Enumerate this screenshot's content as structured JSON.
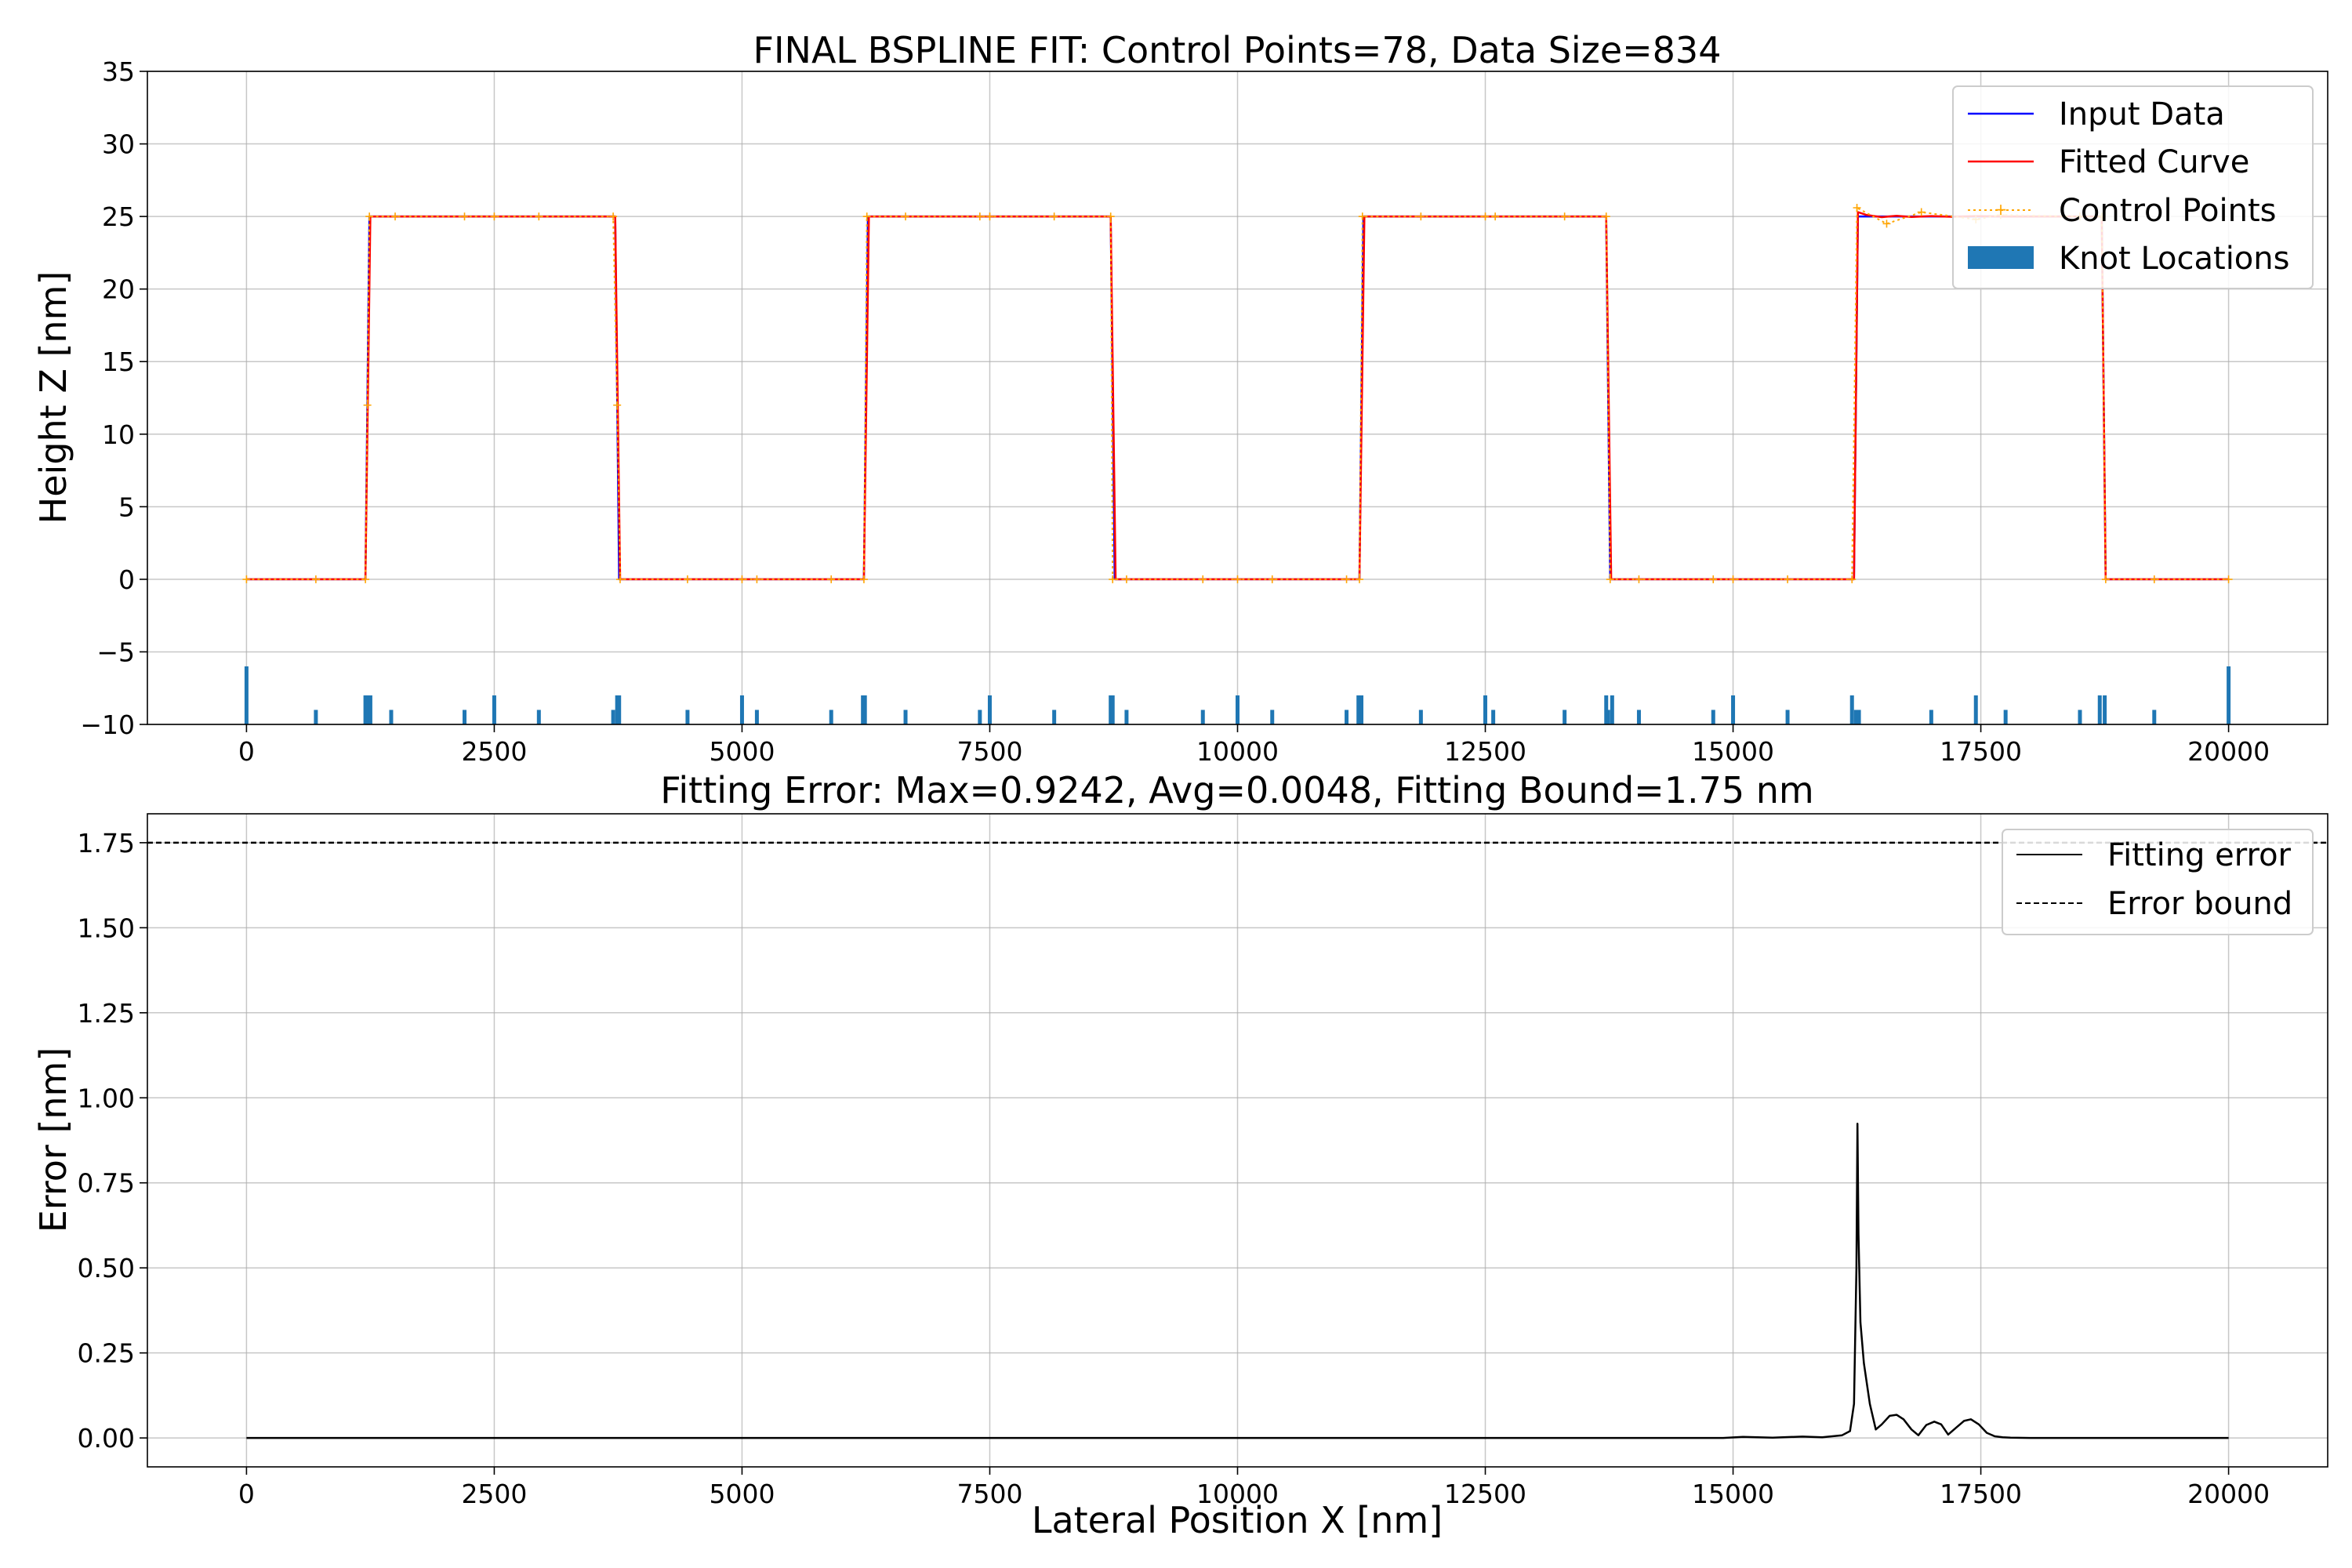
{
  "chart_data": [
    {
      "type": "line",
      "title": "FINAL BSPLINE FIT: Control Points=78, Data Size=834",
      "xlabel": "",
      "ylabel": "Height Z [nm]",
      "xlim": [
        -1000,
        21000
      ],
      "ylim": [
        -10,
        35
      ],
      "xticks": [
        0,
        2500,
        5000,
        7500,
        10000,
        12500,
        15000,
        17500,
        20000
      ],
      "yticks": [
        -10,
        -5,
        0,
        5,
        10,
        15,
        20,
        25,
        30,
        35
      ],
      "ytick_labels": [
        "−10",
        "−5",
        "0",
        "5",
        "10",
        "15",
        "20",
        "25",
        "30",
        "35"
      ],
      "grid": true,
      "legend_position": "upper right",
      "series": [
        {
          "name": "Input Data",
          "color": "#0000ff",
          "style": "solid",
          "x": [
            0,
            1200,
            1240,
            3720,
            3760,
            6230,
            6270,
            8720,
            8760,
            11230,
            11270,
            13720,
            13760,
            16220,
            16260,
            18720,
            18760,
            20000
          ],
          "y": [
            0,
            0,
            25,
            25,
            0,
            0,
            25,
            25,
            0,
            0,
            25,
            25,
            0,
            0,
            25,
            25,
            0,
            0
          ]
        },
        {
          "name": "Fitted Curve",
          "color": "#ff0000",
          "style": "solid",
          "x": [
            0,
            1200,
            1250,
            3720,
            3770,
            6230,
            6280,
            8720,
            8770,
            11230,
            11280,
            13720,
            13770,
            16220,
            16260,
            16350,
            16500,
            16650,
            16800,
            17000,
            17200,
            17450,
            17700,
            18720,
            18760,
            20000
          ],
          "y": [
            0,
            0,
            25,
            25,
            0,
            0,
            25,
            25,
            0,
            0,
            25,
            25,
            0,
            0,
            25.3,
            25.1,
            24.95,
            25.05,
            24.97,
            25.03,
            24.98,
            25.03,
            25.0,
            25,
            0,
            0
          ]
        },
        {
          "name": "Control Points",
          "color": "#ffa500",
          "style": "dotted",
          "marker": "+",
          "x": [
            0,
            700,
            1200,
            1220,
            1240,
            1500,
            2200,
            2500,
            2950,
            3700,
            3740,
            3770,
            4450,
            5000,
            5150,
            5900,
            6230,
            6260,
            6650,
            7400,
            7500,
            8150,
            8720,
            8740,
            8880,
            9650,
            10000,
            10350,
            11100,
            11230,
            11260,
            11850,
            12500,
            12600,
            13300,
            13720,
            13760,
            14050,
            14800,
            15000,
            15550,
            16200,
            16250,
            16550,
            16900,
            17450,
            17700,
            18500,
            18720,
            18760,
            19250,
            20000
          ],
          "y": [
            0,
            0,
            0,
            12,
            25,
            25,
            25,
            25,
            25,
            25,
            12,
            0,
            0,
            0,
            0,
            0,
            0,
            25,
            25,
            25,
            25,
            25,
            25,
            0,
            0,
            0,
            0,
            0,
            0,
            0,
            25,
            25,
            25,
            25,
            25,
            25,
            0,
            0,
            0,
            0,
            0,
            0,
            25.6,
            24.5,
            25.3,
            24.8,
            25.1,
            25,
            25,
            0,
            0,
            0
          ]
        }
      ],
      "knot_locations": {
        "name": "Knot Locations",
        "color": "#1f77b4",
        "baseline": -10,
        "x": [
          0,
          700,
          1200,
          1220,
          1250,
          1460,
          2200,
          2500,
          2950,
          3700,
          3740,
          3760,
          4450,
          5000,
          5150,
          5900,
          6220,
          6240,
          6650,
          7400,
          7500,
          8150,
          8720,
          8740,
          8880,
          9650,
          10000,
          10350,
          11100,
          11220,
          11250,
          11850,
          12500,
          12580,
          13300,
          13720,
          13740,
          13780,
          14050,
          14800,
          15000,
          15550,
          16200,
          16240,
          16270,
          17000,
          17450,
          17750,
          18500,
          18700,
          18750,
          19250,
          20000
        ],
        "heights": [
          4,
          1,
          2,
          2,
          2,
          1,
          1,
          2,
          1,
          1,
          2,
          2,
          1,
          2,
          1,
          1,
          2,
          2,
          1,
          1,
          2,
          1,
          2,
          2,
          1,
          1,
          2,
          1,
          1,
          2,
          2,
          1,
          2,
          1,
          1,
          2,
          1,
          2,
          1,
          1,
          2,
          1,
          2,
          1,
          1,
          1,
          2,
          1,
          1,
          2,
          2,
          1,
          4
        ]
      },
      "legend": [
        "Input Data",
        "Fitted Curve",
        "Control Points",
        "Knot Locations"
      ]
    },
    {
      "type": "line",
      "title": "Fitting Error: Max=0.9242, Avg=0.0048, Fitting Bound=1.75 nm",
      "xlabel": "Lateral Position X [nm]",
      "ylabel": "Error [nm]",
      "xlim": [
        -1000,
        21000
      ],
      "ylim": [
        -0.085,
        1.835
      ],
      "xticks": [
        0,
        2500,
        5000,
        7500,
        10000,
        12500,
        15000,
        17500,
        20000
      ],
      "yticks": [
        0,
        0.25,
        0.5,
        0.75,
        1.0,
        1.25,
        1.5,
        1.75
      ],
      "ytick_labels": [
        "0.00",
        "0.25",
        "0.50",
        "0.75",
        "1.00",
        "1.25",
        "1.50",
        "1.75"
      ],
      "grid": true,
      "legend_position": "upper right",
      "series": [
        {
          "name": "Fitting error",
          "color": "#000000",
          "style": "solid",
          "x": [
            0,
            14900,
            15100,
            15400,
            15700,
            15900,
            16100,
            16180,
            16220,
            16245,
            16255,
            16265,
            16285,
            16320,
            16380,
            16440,
            16500,
            16580,
            16650,
            16720,
            16800,
            16870,
            16950,
            17030,
            17100,
            17170,
            17250,
            17330,
            17400,
            17480,
            17560,
            17640,
            17720,
            17800,
            18000,
            18500,
            20000
          ],
          "y": [
            0,
            0,
            0.003,
            0.001,
            0.004,
            0.002,
            0.008,
            0.02,
            0.1,
            0.5,
            0.9242,
            0.6,
            0.34,
            0.22,
            0.1,
            0.025,
            0.04,
            0.065,
            0.068,
            0.055,
            0.025,
            0.008,
            0.038,
            0.048,
            0.04,
            0.01,
            0.03,
            0.05,
            0.055,
            0.04,
            0.015,
            0.005,
            0.002,
            0.001,
            0,
            0,
            0
          ]
        },
        {
          "name": "Error bound",
          "color": "#000000",
          "style": "dashed",
          "x": [
            -1000,
            21000
          ],
          "y": [
            1.75,
            1.75
          ]
        }
      ],
      "legend": [
        "Fitting error",
        "Error bound"
      ]
    }
  ]
}
